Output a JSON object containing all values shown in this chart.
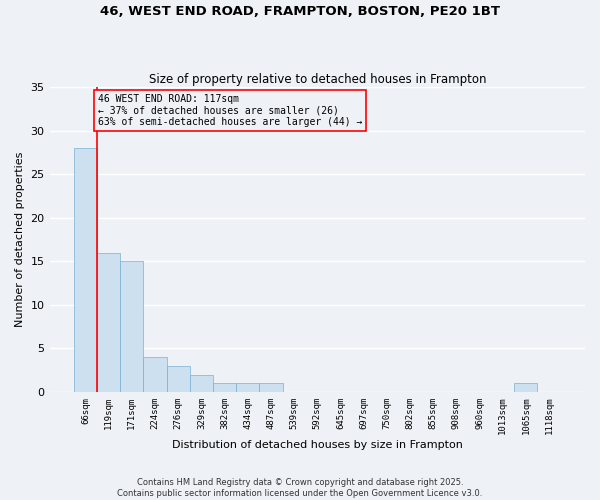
{
  "title_line1": "46, WEST END ROAD, FRAMPTON, BOSTON, PE20 1BT",
  "title_line2": "Size of property relative to detached houses in Frampton",
  "xlabel": "Distribution of detached houses by size in Frampton",
  "ylabel": "Number of detached properties",
  "bar_color": "#cce0f0",
  "bar_edgecolor": "#7ab0d4",
  "categories": [
    "66sqm",
    "119sqm",
    "171sqm",
    "224sqm",
    "276sqm",
    "329sqm",
    "382sqm",
    "434sqm",
    "487sqm",
    "539sqm",
    "592sqm",
    "645sqm",
    "697sqm",
    "750sqm",
    "802sqm",
    "855sqm",
    "908sqm",
    "960sqm",
    "1013sqm",
    "1065sqm",
    "1118sqm"
  ],
  "values": [
    28,
    16,
    15,
    4,
    3,
    2,
    1,
    1,
    1,
    0,
    0,
    0,
    0,
    0,
    0,
    0,
    0,
    0,
    0,
    1,
    0
  ],
  "annotation_text": "46 WEST END ROAD: 117sqm\n← 37% of detached houses are smaller (26)\n63% of semi-detached houses are larger (44) →",
  "bg_color": "#eef2f7",
  "grid_color": "#ffffff",
  "footer_line1": "Contains HM Land Registry data © Crown copyright and database right 2025.",
  "footer_line2": "Contains public sector information licensed under the Open Government Licence v3.0.",
  "ylim": [
    0,
    35
  ],
  "yticks": [
    0,
    5,
    10,
    15,
    20,
    25,
    30,
    35
  ],
  "vline_x": 0.5
}
